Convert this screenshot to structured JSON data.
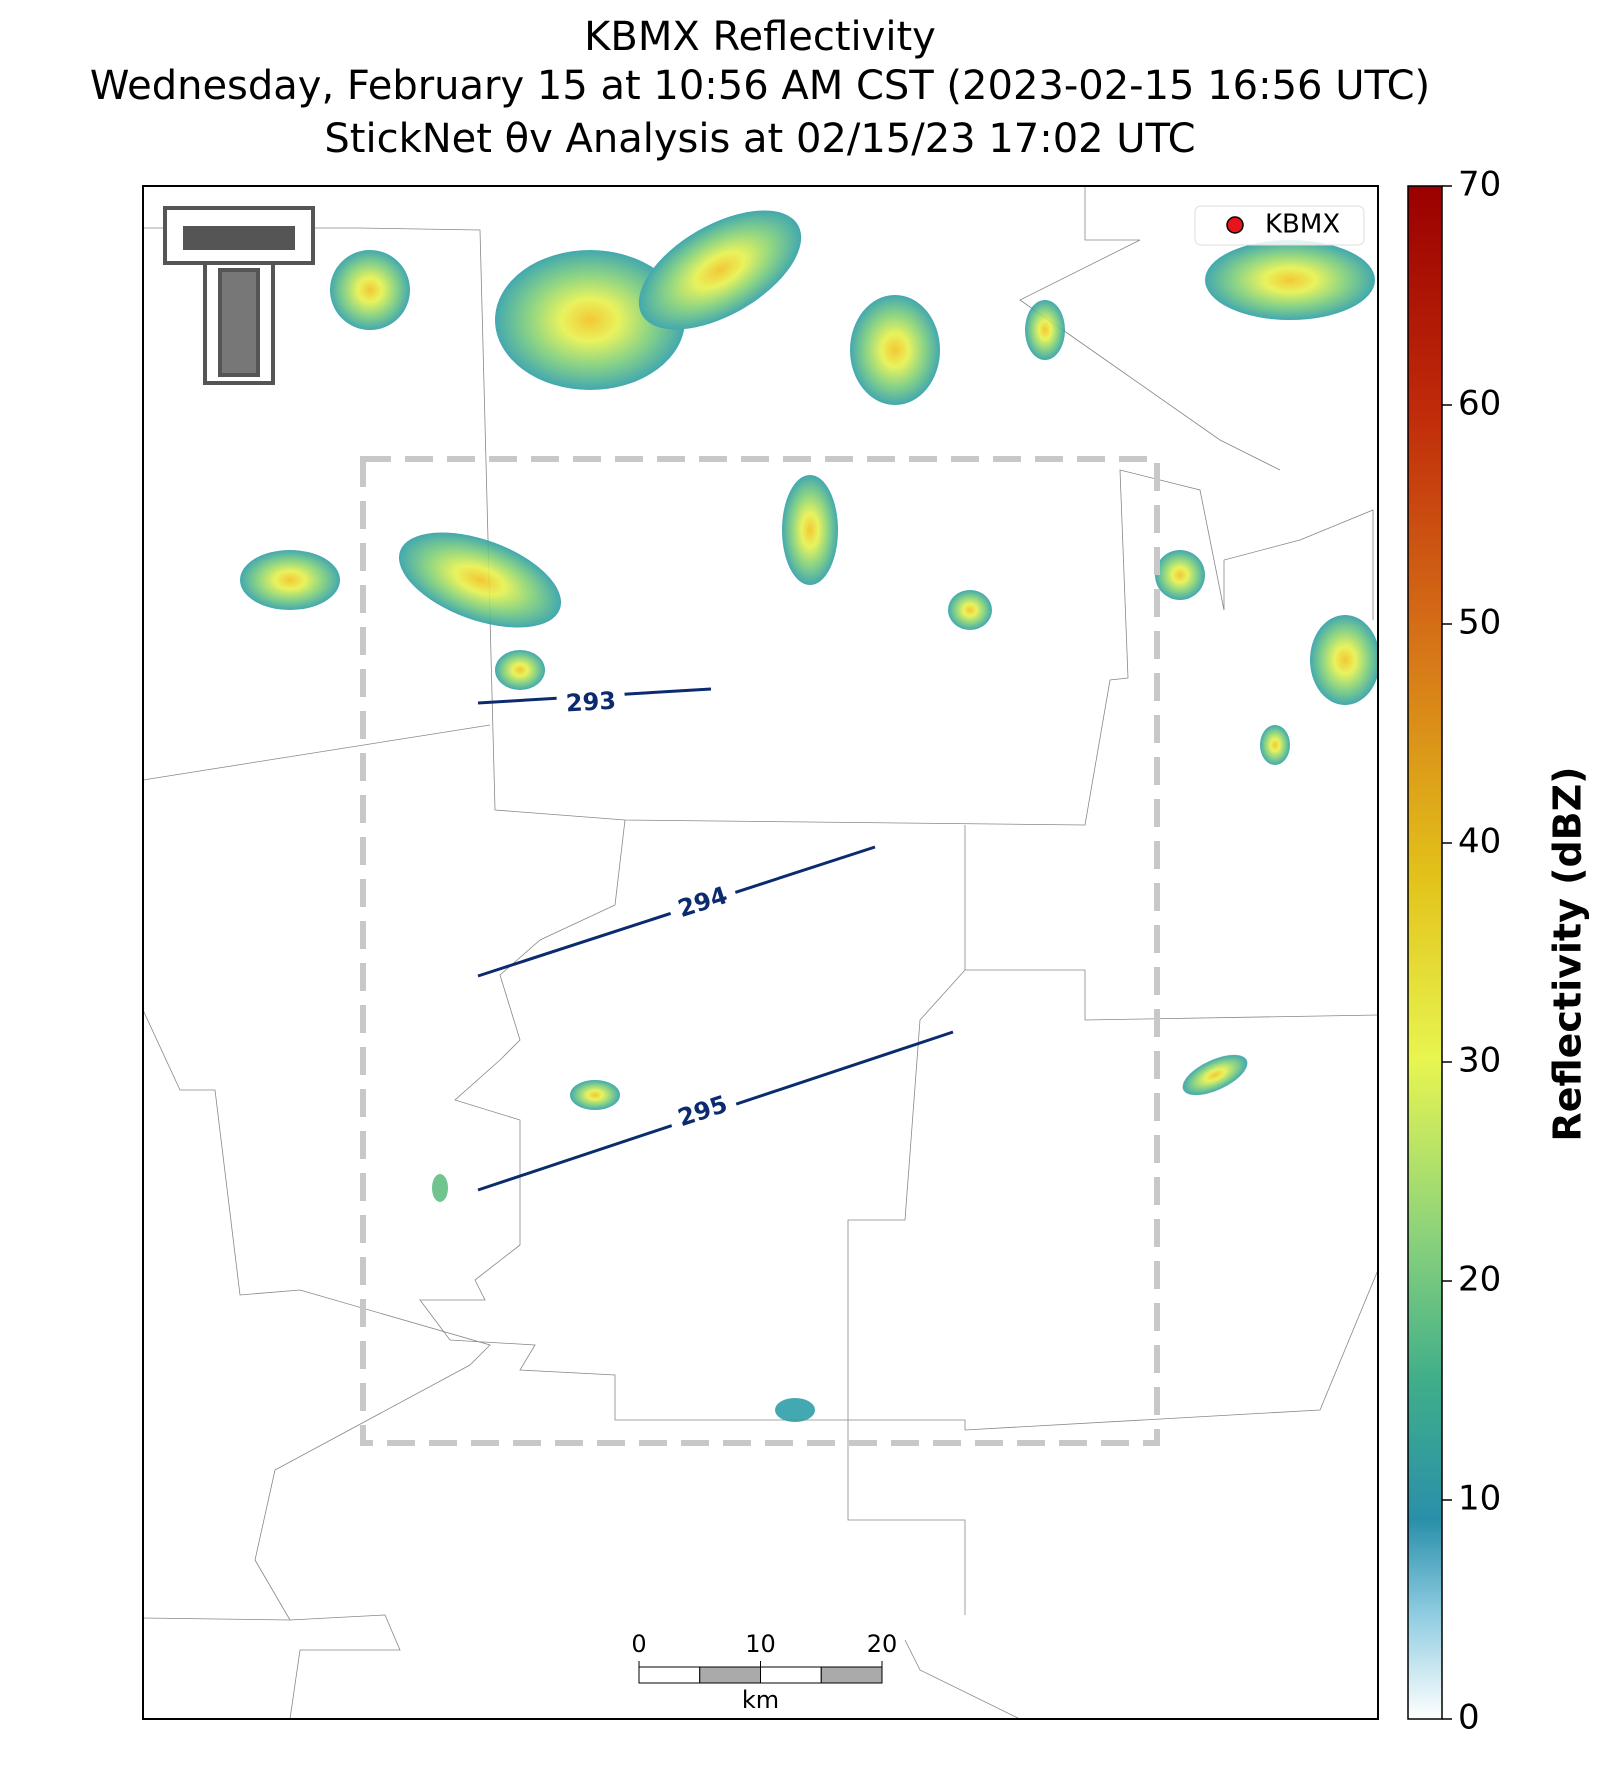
{
  "title": [
    "KBMX Reflectivity",
    "Wednesday, February 15 at 10:56 AM CST (2023-02-15 16:56 UTC)",
    "StickNet θv Analysis at 02/15/23 17:02 UTC"
  ],
  "legend": {
    "label": "KBMX",
    "color": "#e8141b"
  },
  "colorbar": {
    "label": "Reflectivity (dBZ)",
    "lim": [
      0,
      70
    ],
    "ticks": [
      0,
      10,
      20,
      30,
      40,
      50,
      60,
      70
    ]
  },
  "contours": [
    {
      "level": 293
    },
    {
      "level": 294
    },
    {
      "level": 295
    }
  ],
  "scalebar": {
    "ticks": [
      0,
      10,
      20
    ],
    "unit": "km"
  }
}
